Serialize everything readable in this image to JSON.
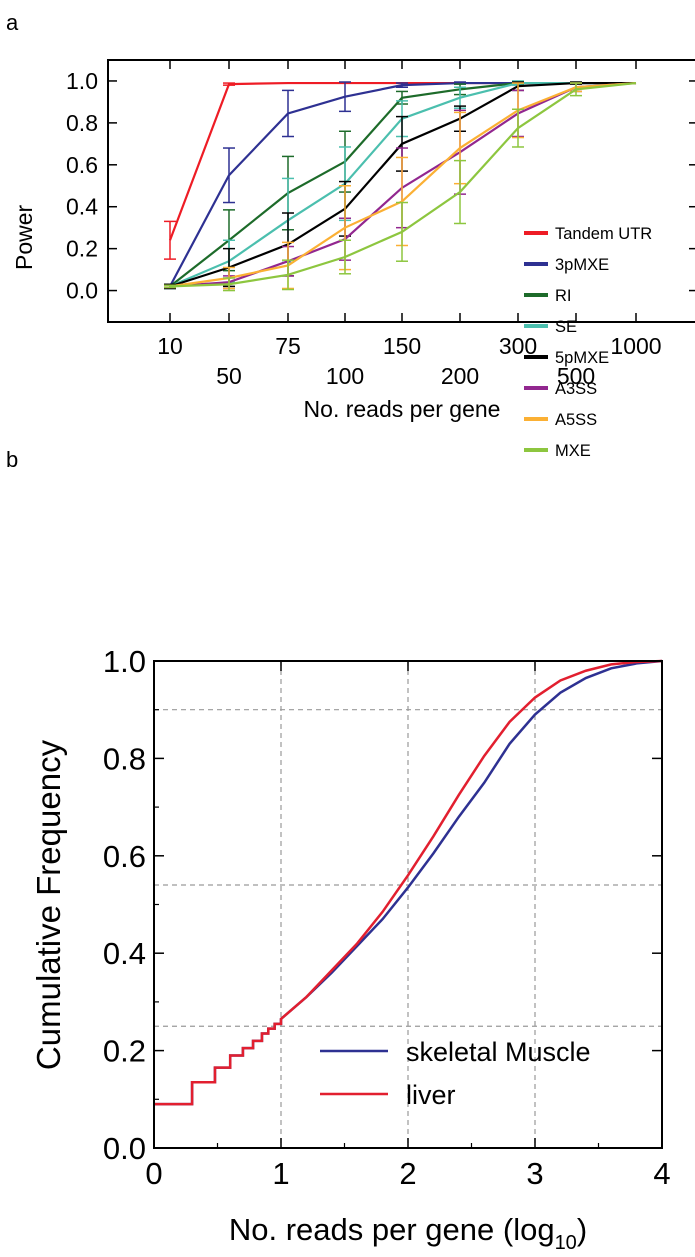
{
  "chart_data": [
    {
      "panel_label": "a",
      "type": "line",
      "xlabel": "No. reads per gene",
      "ylabel": "Power",
      "categories": [
        "10",
        "50",
        "75",
        "100",
        "150",
        "200",
        "300",
        "500",
        "1000"
      ],
      "ylim": [
        -0.15,
        1.1
      ],
      "yticks": [
        "0.0",
        "0.2",
        "0.4",
        "0.6",
        "0.8",
        "1.0"
      ],
      "legend_position": "right",
      "series": [
        {
          "name": "Tandem UTR",
          "color": "#ee1c25",
          "values": [
            0.24,
            0.985,
            0.99,
            0.99,
            0.99,
            0.99,
            0.99,
            0.99,
            0.99
          ],
          "err": [
            0.09,
            0.005,
            0,
            0,
            0,
            0,
            0,
            0,
            0
          ]
        },
        {
          "name": "3pMXE",
          "color": "#2e3192",
          "values": [
            0.02,
            0.55,
            0.845,
            0.925,
            0.98,
            0.99,
            0.99,
            0.99,
            0.99
          ],
          "err": [
            0.01,
            0.13,
            0.11,
            0.07,
            0.01,
            0.005,
            0,
            0,
            0
          ]
        },
        {
          "name": "RI",
          "color": "#1d6b2a",
          "values": [
            0.02,
            0.24,
            0.465,
            0.615,
            0.92,
            0.96,
            0.99,
            0.99,
            0.99
          ],
          "err": [
            0.01,
            0.145,
            0.175,
            0.145,
            0.03,
            0.025,
            0.005,
            0,
            0
          ]
        },
        {
          "name": "SE",
          "color": "#4bbfae",
          "values": [
            0.02,
            0.14,
            0.335,
            0.51,
            0.82,
            0.92,
            0.99,
            0.99,
            0.99
          ],
          "err": [
            0.01,
            0.1,
            0.2,
            0.175,
            0.085,
            0.05,
            0.01,
            0,
            0
          ]
        },
        {
          "name": "5pMXE",
          "color": "#000000",
          "values": [
            0.02,
            0.11,
            0.22,
            0.39,
            0.7,
            0.82,
            0.975,
            0.99,
            0.99
          ],
          "err": [
            0.01,
            0.09,
            0.15,
            0.13,
            0.13,
            0.06,
            0.02,
            0.005,
            0
          ]
        },
        {
          "name": "A3SS",
          "color": "#92278f",
          "values": [
            0.02,
            0.04,
            0.14,
            0.245,
            0.49,
            0.66,
            0.845,
            0.97,
            0.99
          ],
          "err": [
            0.005,
            0.03,
            0.07,
            0.1,
            0.19,
            0.2,
            0.11,
            0.02,
            0
          ]
        },
        {
          "name": "A5SS",
          "color": "#fbb034",
          "values": [
            0.02,
            0.06,
            0.12,
            0.3,
            0.425,
            0.68,
            0.86,
            0.97,
            0.99
          ],
          "err": [
            0.005,
            0.05,
            0.11,
            0.2,
            0.21,
            0.17,
            0.13,
            0.02,
            0
          ]
        },
        {
          "name": "MXE",
          "color": "#8dc63f",
          "values": [
            0.02,
            0.03,
            0.075,
            0.16,
            0.28,
            0.47,
            0.775,
            0.96,
            0.99
          ],
          "err": [
            0.005,
            0.03,
            0.07,
            0.08,
            0.14,
            0.15,
            0.09,
            0.03,
            0
          ]
        }
      ]
    },
    {
      "panel_label": "b",
      "type": "line",
      "xlabel_main": "No. reads per gene (log",
      "xlabel_sub": "10",
      "xlabel_close": ")",
      "ylabel": "Cumulative Frequency",
      "xlim": [
        0,
        4
      ],
      "ylim": [
        0,
        1
      ],
      "xticks": [
        "0",
        "1",
        "2",
        "3",
        "4"
      ],
      "yticks": [
        "0.0",
        "0.2",
        "0.4",
        "0.6",
        "0.8",
        "1.0"
      ],
      "grid_x": [
        1,
        2,
        3
      ],
      "grid_y": [
        0.25,
        0.54,
        0.9
      ],
      "legend_position": "lower-right",
      "series": [
        {
          "name": "skeletal Muscle",
          "color": "#2e3192",
          "x": [
            0,
            0.3,
            0.48,
            0.6,
            0.7,
            0.78,
            0.85,
            0.9,
            0.95,
            1.0,
            1.2,
            1.4,
            1.6,
            1.8,
            2.0,
            2.2,
            2.4,
            2.6,
            2.8,
            3.0,
            3.2,
            3.4,
            3.6,
            3.8,
            4.0
          ],
          "y": [
            0.09,
            0.135,
            0.165,
            0.19,
            0.205,
            0.22,
            0.235,
            0.245,
            0.255,
            0.265,
            0.31,
            0.36,
            0.415,
            0.47,
            0.535,
            0.605,
            0.68,
            0.75,
            0.83,
            0.89,
            0.935,
            0.965,
            0.985,
            0.995,
            1.0
          ]
        },
        {
          "name": "liver",
          "color": "#e21f2f",
          "x": [
            0,
            0.3,
            0.48,
            0.6,
            0.7,
            0.78,
            0.85,
            0.9,
            0.95,
            1.0,
            1.2,
            1.4,
            1.6,
            1.8,
            2.0,
            2.2,
            2.4,
            2.6,
            2.8,
            3.0,
            3.2,
            3.4,
            3.6,
            3.8,
            4.0
          ],
          "y": [
            0.09,
            0.135,
            0.165,
            0.19,
            0.205,
            0.22,
            0.235,
            0.245,
            0.255,
            0.265,
            0.31,
            0.365,
            0.42,
            0.485,
            0.56,
            0.64,
            0.725,
            0.805,
            0.875,
            0.925,
            0.96,
            0.98,
            0.993,
            0.998,
            1.0
          ]
        }
      ]
    }
  ]
}
